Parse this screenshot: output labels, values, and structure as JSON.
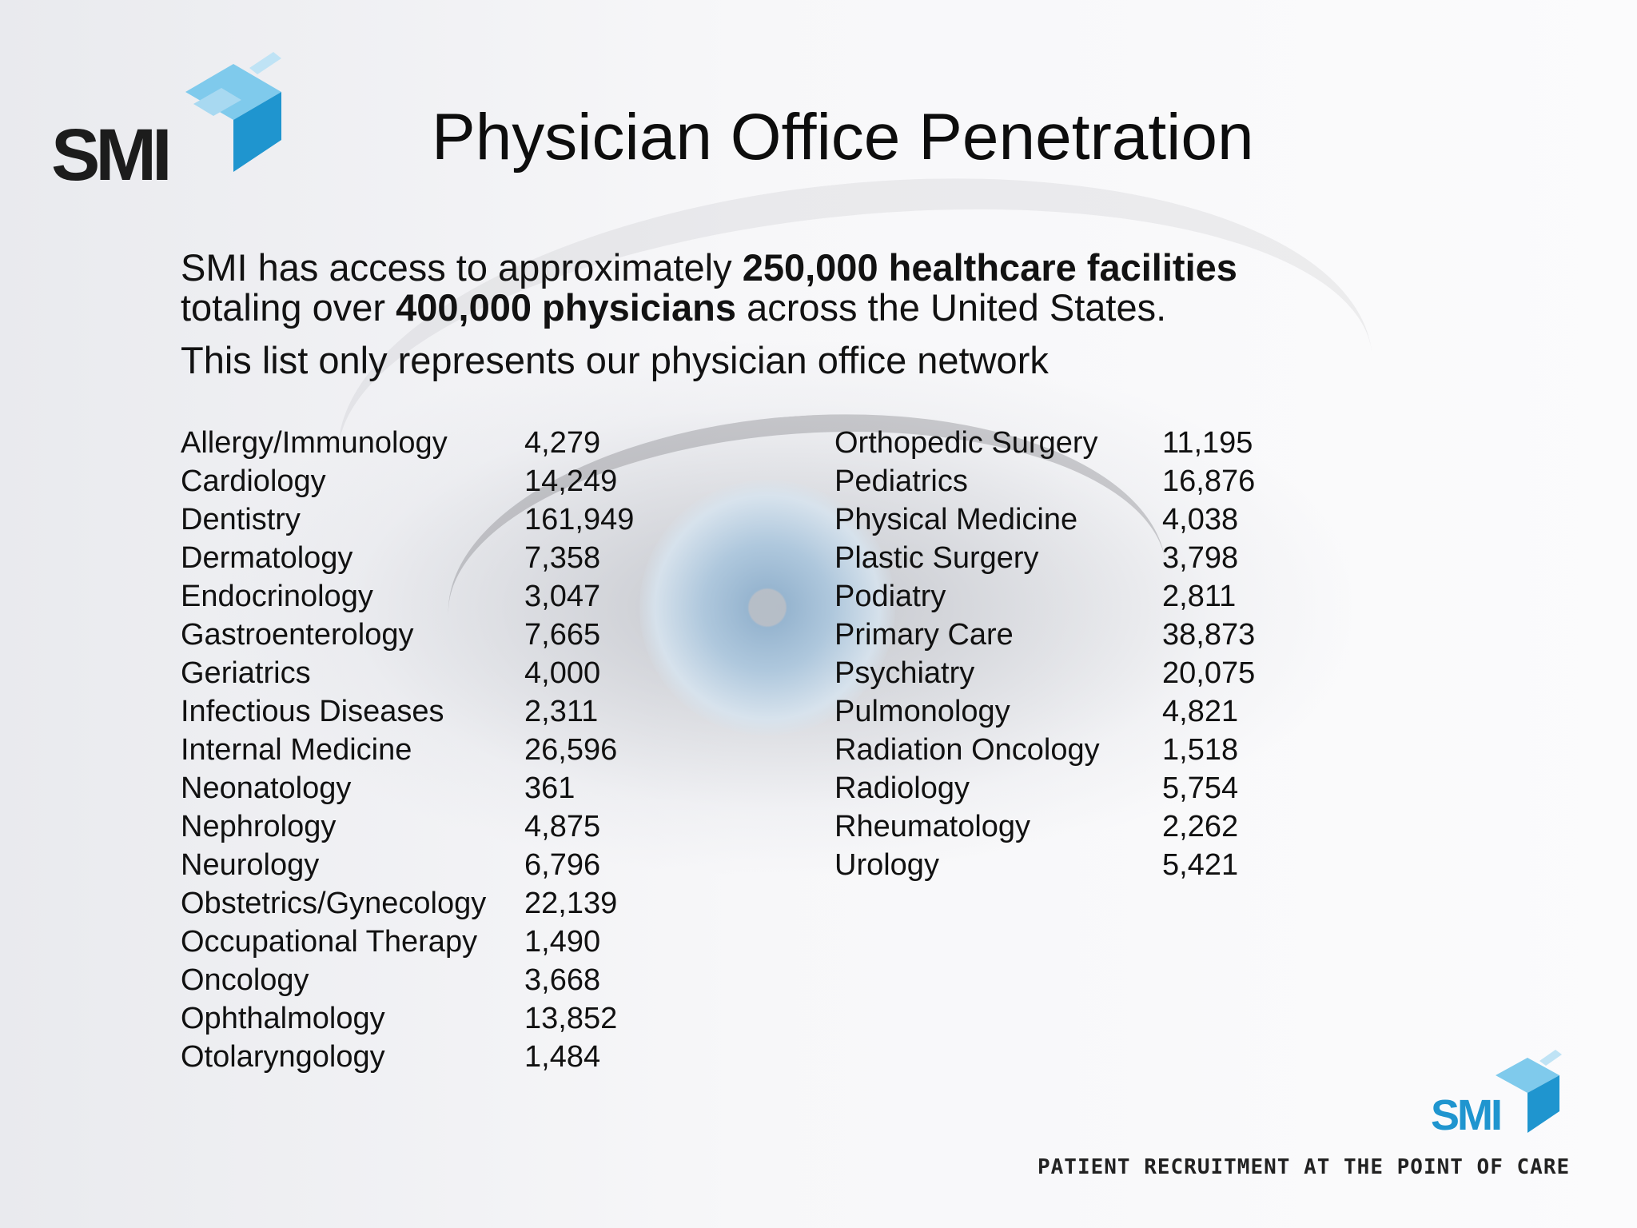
{
  "brand": {
    "logo_text": "SMI",
    "tagline": "PATIENT RECRUITMENT AT THE POINT OF CARE",
    "accent_color": "#2aa3d9"
  },
  "slide": {
    "title": "Physician Office Penetration",
    "intro_part1": "SMI has access to approximately ",
    "intro_bold1": "250,000 healthcare facilities",
    "intro_part2": "totaling over ",
    "intro_bold2": "400,000 physicians",
    "intro_part3": " across the United States.",
    "subtitle": "This list only represents our physician office network"
  },
  "specialties_left": [
    {
      "name": "Allergy/Immunology",
      "count": "4,279"
    },
    {
      "name": "Cardiology",
      "count": "14,249"
    },
    {
      "name": "Dentistry",
      "count": "161,949"
    },
    {
      "name": "Dermatology",
      "count": "7,358"
    },
    {
      "name": "Endocrinology",
      "count": "3,047"
    },
    {
      "name": "Gastroenterology",
      "count": "7,665"
    },
    {
      "name": "Geriatrics",
      "count": "4,000"
    },
    {
      "name": "Infectious Diseases",
      "count": "2,311"
    },
    {
      "name": "Internal Medicine",
      "count": "26,596"
    },
    {
      "name": "Neonatology",
      "count": "361"
    },
    {
      "name": "Nephrology",
      "count": "4,875"
    },
    {
      "name": "Neurology",
      "count": "6,796"
    },
    {
      "name": "Obstetrics/Gynecology",
      "count": "22,139"
    },
    {
      "name": "Occupational Therapy",
      "count": "1,490"
    },
    {
      "name": "Oncology",
      "count": "3,668"
    },
    {
      "name": "Ophthalmology",
      "count": "13,852"
    },
    {
      "name": "Otolaryngology",
      "count": "1,484"
    }
  ],
  "specialties_right": [
    {
      "name": "Orthopedic Surgery",
      "count": "11,195"
    },
    {
      "name": "Pediatrics",
      "count": "16,876"
    },
    {
      "name": "Physical Medicine",
      "count": "4,038"
    },
    {
      "name": "Plastic Surgery",
      "count": "3,798"
    },
    {
      "name": "Podiatry",
      "count": "2,811"
    },
    {
      "name": "Primary Care",
      "count": "38,873"
    },
    {
      "name": "Psychiatry",
      "count": "20,075"
    },
    {
      "name": "Pulmonology",
      "count": "4,821"
    },
    {
      "name": "Radiation Oncology",
      "count": "1,518"
    },
    {
      "name": "Radiology",
      "count": "5,754"
    },
    {
      "name": "Rheumatology",
      "count": "2,262"
    },
    {
      "name": "Urology",
      "count": "5,421"
    }
  ]
}
